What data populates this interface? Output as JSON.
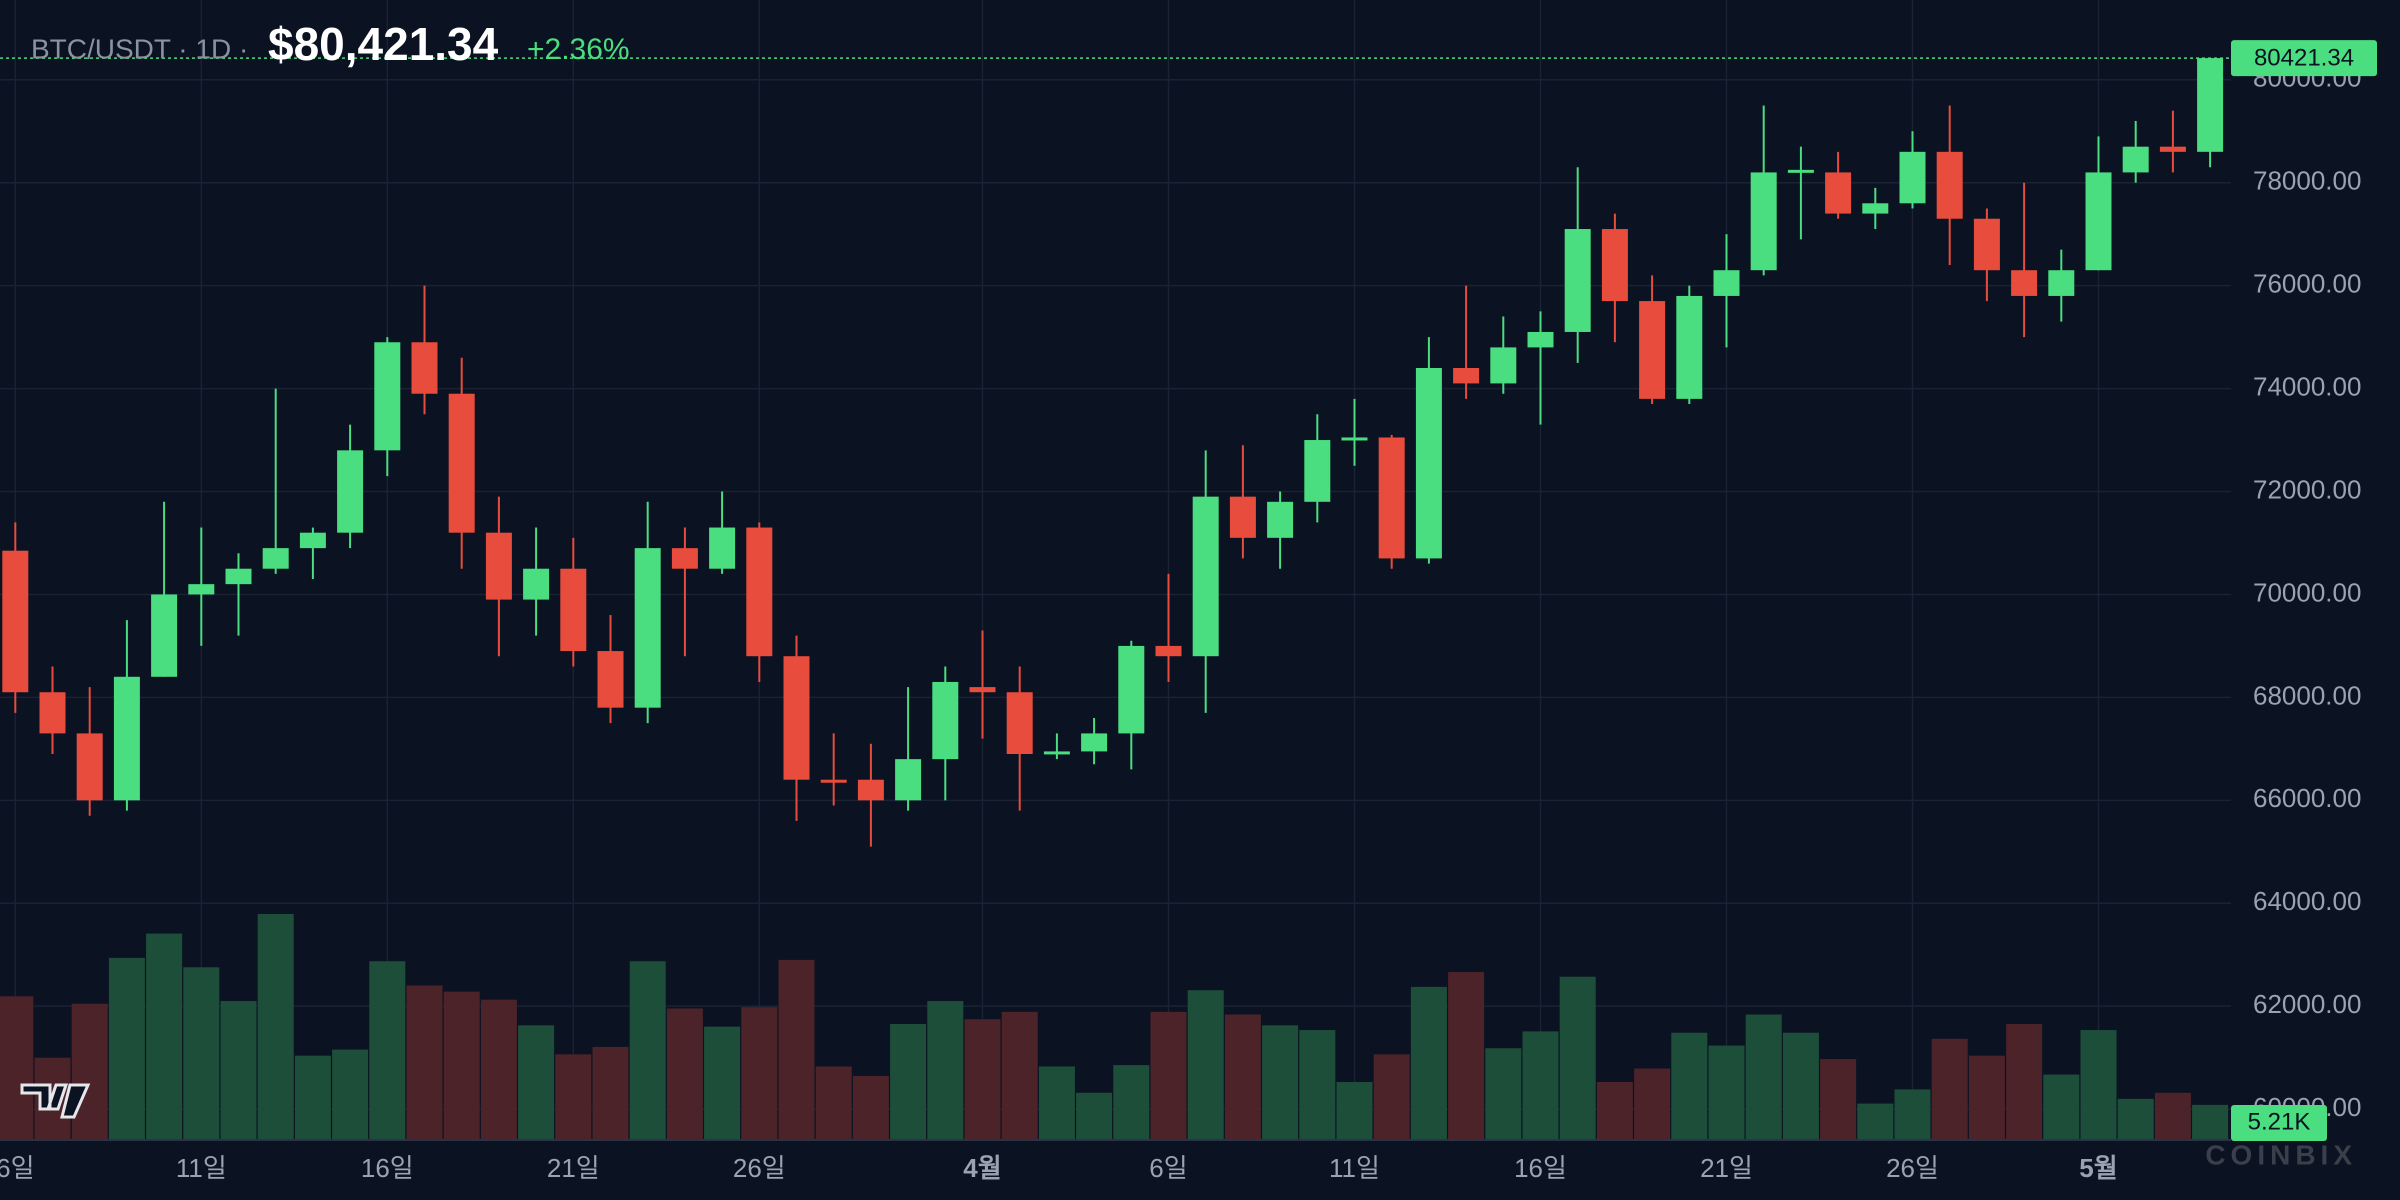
{
  "chart_data": {
    "type": "candlestick",
    "title": "BTC/USDT · 1D ·",
    "last_price": {
      "value": 80421.34,
      "label": "$80,421.34"
    },
    "change": {
      "value": 2.36,
      "label": "+2.36%"
    },
    "watermark": "COINBIX",
    "categories": [
      "6일",
      null,
      null,
      null,
      null,
      "11일",
      null,
      null,
      null,
      null,
      "16일",
      null,
      null,
      null,
      null,
      "21일",
      null,
      null,
      null,
      null,
      "26일",
      null,
      null,
      null,
      null,
      null,
      "4월",
      null,
      null,
      null,
      null,
      "6일",
      null,
      null,
      null,
      null,
      "11일",
      null,
      null,
      null,
      null,
      "16일",
      null,
      null,
      null,
      null,
      "21일",
      null,
      null,
      null,
      null,
      "26일",
      null,
      null,
      null,
      null,
      "5월",
      null,
      null,
      null
    ],
    "open": [
      70850,
      68100,
      67300,
      66000,
      68400,
      70000,
      70200,
      70500,
      70900,
      71200,
      72800,
      74900,
      73900,
      71200,
      69900,
      70500,
      68900,
      67800,
      70900,
      70500,
      71300,
      68800,
      66400,
      66400,
      66000,
      66800,
      68200,
      68100,
      66900,
      66950,
      67300,
      69000,
      68800,
      71900,
      71100,
      71800,
      73000,
      73050,
      70700,
      74400,
      74100,
      74800,
      75100,
      77100,
      75700,
      73800,
      75800,
      76300,
      78200,
      78200,
      77400,
      77600,
      78600,
      77300,
      76300,
      75800,
      76300,
      78200,
      78700,
      78600
    ],
    "high": [
      71400,
      68600,
      68200,
      69500,
      71800,
      71300,
      70800,
      74000,
      71300,
      73300,
      75000,
      76000,
      74600,
      71900,
      71300,
      71100,
      69600,
      71800,
      71300,
      72000,
      71400,
      69200,
      67300,
      67100,
      68200,
      68600,
      69300,
      68600,
      67300,
      67600,
      69100,
      70400,
      72800,
      72900,
      72000,
      73500,
      73800,
      73100,
      75000,
      76000,
      75400,
      75500,
      78300,
      77400,
      76200,
      76000,
      77000,
      79500,
      78700,
      78600,
      77900,
      79000,
      79500,
      77500,
      78000,
      76700,
      78900,
      79200,
      79400,
      80421.34
    ],
    "low": [
      67700,
      66900,
      65700,
      65800,
      68400,
      69000,
      69200,
      70400,
      70300,
      70900,
      72300,
      73500,
      70500,
      68800,
      69200,
      68600,
      67500,
      67500,
      68800,
      70400,
      68300,
      65600,
      65900,
      65100,
      65800,
      66000,
      67200,
      65800,
      66800,
      66700,
      66600,
      68300,
      67700,
      70700,
      70500,
      71400,
      72500,
      70500,
      70600,
      73800,
      73900,
      73300,
      74500,
      74900,
      73700,
      73700,
      74800,
      76200,
      76900,
      77300,
      77100,
      77500,
      76400,
      75700,
      75000,
      75300,
      76300,
      78000,
      78200,
      78300
    ],
    "close": [
      68100,
      67300,
      66000,
      68400,
      70000,
      70200,
      70500,
      70900,
      71200,
      72800,
      74900,
      73900,
      71200,
      69900,
      70500,
      68900,
      67800,
      70900,
      70500,
      71300,
      68800,
      66400,
      66350,
      66000,
      66800,
      68300,
      68100,
      66900,
      66950,
      67300,
      69000,
      68800,
      71900,
      71100,
      71800,
      73000,
      73050,
      70700,
      74400,
      74100,
      74800,
      75100,
      77100,
      75700,
      73800,
      75800,
      76300,
      78200,
      78250,
      77400,
      77600,
      78600,
      77300,
      76300,
      75800,
      76300,
      78200,
      78700,
      78600,
      80421.34
    ],
    "volume": {
      "values": [
        21.3,
        12.2,
        20.2,
        27.0,
        30.6,
        25.6,
        20.6,
        33.5,
        12.5,
        13.4,
        26.5,
        22.9,
        22.0,
        20.8,
        17.0,
        12.7,
        13.8,
        26.5,
        19.5,
        16.8,
        19.7,
        26.7,
        10.9,
        9.5,
        17.2,
        20.6,
        17.9,
        19.0,
        10.9,
        7.0,
        11.1,
        19.0,
        22.2,
        18.6,
        17.0,
        16.3,
        8.6,
        12.7,
        22.7,
        24.9,
        13.6,
        16.1,
        24.2,
        8.6,
        10.6,
        15.9,
        14.0,
        18.6,
        15.9,
        12.0,
        5.4,
        7.5,
        15.0,
        12.5,
        17.2,
        9.7,
        16.3,
        6.1,
        7.0,
        5.21
      ],
      "value_labels": [
        null,
        null,
        null,
        null,
        null,
        null,
        null,
        null,
        null,
        null,
        null,
        null,
        null,
        null,
        null,
        null,
        null,
        null,
        null,
        null,
        null,
        null,
        null,
        null,
        null,
        null,
        null,
        null,
        null,
        null,
        null,
        null,
        null,
        null,
        null,
        null,
        null,
        null,
        null,
        null,
        null,
        null,
        null,
        null,
        null,
        null,
        null,
        null,
        null,
        null,
        null,
        null,
        null,
        null,
        null,
        null,
        null,
        null,
        null,
        "5.21K"
      ]
    },
    "up_color": "#4ade80",
    "down_color": "#e74c3c",
    "volume_up_color": "#1d4e3a",
    "volume_down_color": "#4b2329",
    "ylim": [
      59400,
      81550
    ],
    "yticks": [
      {
        "value": 60000,
        "label": "60000.00"
      },
      {
        "value": 62000,
        "label": "62000.00"
      },
      {
        "value": 64000,
        "label": "64000.00"
      },
      {
        "value": 66000,
        "label": "66000.00"
      },
      {
        "value": 68000,
        "label": "68000.00"
      },
      {
        "value": 70000,
        "label": "70000.00"
      },
      {
        "value": 72000,
        "label": "72000.00"
      },
      {
        "value": 74000,
        "label": "74000.00"
      },
      {
        "value": 76000,
        "label": "76000.00"
      },
      {
        "value": 78000,
        "label": "78000.00"
      },
      {
        "value": 80000,
        "label": "80000.00"
      }
    ],
    "grid": true
  }
}
